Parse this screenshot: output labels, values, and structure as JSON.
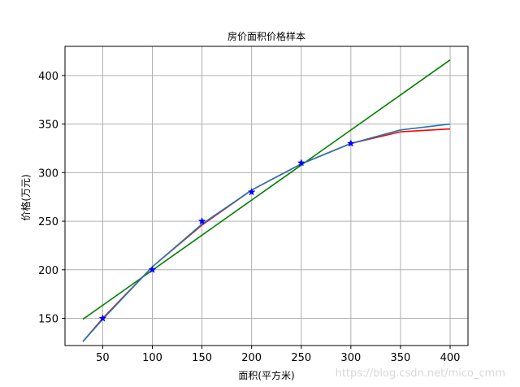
{
  "chart_data": {
    "type": "line",
    "title": "房价面积价格样本",
    "xlabel": "面积(平方米)",
    "ylabel": "价格(万元)",
    "xlim": [
      12,
      418
    ],
    "ylim": [
      122,
      430
    ],
    "xticks": [
      50,
      100,
      150,
      200,
      250,
      300,
      350,
      400
    ],
    "yticks": [
      150,
      200,
      250,
      300,
      350,
      400
    ],
    "grid": true,
    "samples": {
      "marker": "star",
      "color": "#0000ff",
      "x": [
        50,
        100,
        150,
        200,
        250,
        300
      ],
      "y": [
        150,
        200,
        250,
        280,
        310,
        330
      ]
    },
    "series": [
      {
        "color": "#008000",
        "x": [
          30,
          400
        ],
        "y": [
          149,
          416
        ]
      },
      {
        "color": "#ff0000",
        "x": [
          30,
          50,
          100,
          150,
          200,
          250,
          300,
          350,
          400
        ],
        "y": [
          126,
          150,
          203,
          246,
          282,
          309,
          330,
          342,
          345
        ]
      },
      {
        "color": "#1f77b4",
        "x": [
          30,
          50,
          100,
          150,
          200,
          250,
          300,
          350,
          400
        ],
        "y": [
          126,
          149,
          203,
          247,
          282,
          309,
          330,
          344,
          350
        ]
      }
    ]
  },
  "watermark": "https://blog.csdn.net/mico_cmm"
}
